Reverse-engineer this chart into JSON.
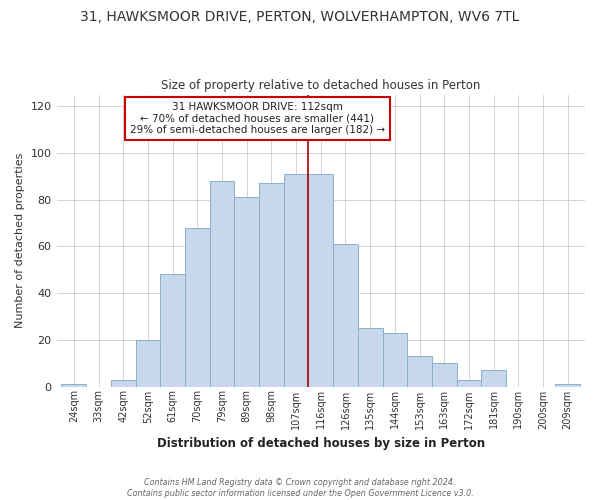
{
  "title": "31, HAWKSMOOR DRIVE, PERTON, WOLVERHAMPTON, WV6 7TL",
  "subtitle": "Size of property relative to detached houses in Perton",
  "xlabel": "Distribution of detached houses by size in Perton",
  "ylabel": "Number of detached properties",
  "bar_labels": [
    "24sqm",
    "33sqm",
    "42sqm",
    "52sqm",
    "61sqm",
    "70sqm",
    "79sqm",
    "89sqm",
    "98sqm",
    "107sqm",
    "116sqm",
    "126sqm",
    "135sqm",
    "144sqm",
    "153sqm",
    "163sqm",
    "172sqm",
    "181sqm",
    "190sqm",
    "200sqm",
    "209sqm"
  ],
  "bar_heights": [
    1,
    0,
    3,
    20,
    48,
    68,
    88,
    81,
    87,
    91,
    91,
    61,
    25,
    23,
    13,
    10,
    3,
    7,
    0,
    0,
    1
  ],
  "bar_color": "#c8d8ec",
  "bar_edge_color": "#8ab0cc",
  "vline_x": 9.5,
  "vline_color": "#aa0000",
  "annotation_title": "31 HAWKSMOOR DRIVE: 112sqm",
  "annotation_line1": "← 70% of detached houses are smaller (441)",
  "annotation_line2": "29% of semi-detached houses are larger (182) →",
  "annotation_box_color": "#ffffff",
  "annotation_box_edge": "#cc0000",
  "footer1": "Contains HM Land Registry data © Crown copyright and database right 2024.",
  "footer2": "Contains public sector information licensed under the Open Government Licence v3.0.",
  "ylim": [
    0,
    125
  ],
  "background_color": "#ffffff",
  "plot_background": "#ffffff",
  "grid_color": "#cccccc"
}
